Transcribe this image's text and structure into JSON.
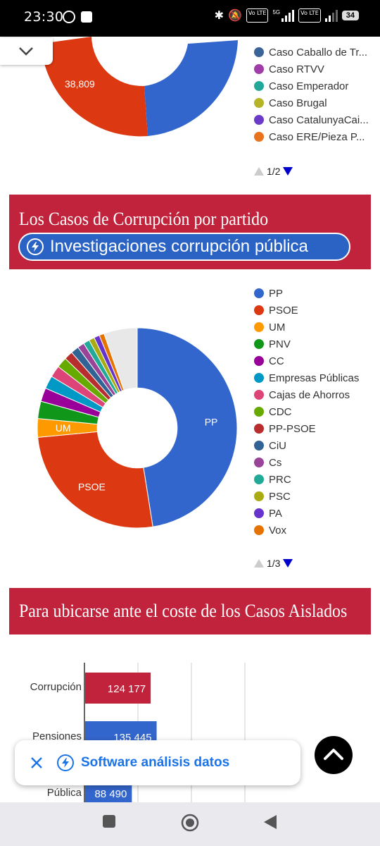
{
  "status_bar": {
    "time": "23:30",
    "network_5g": "5G",
    "volte_1": "Vo LTE",
    "volte_2": "Vo LTE",
    "battery": "34"
  },
  "section1": {
    "donut_label": "38,809",
    "legend": [
      {
        "label": "Caso Caballo de Tr...",
        "color": "#3a6398"
      },
      {
        "label": "Caso RTVV",
        "color": "#a03ca8"
      },
      {
        "label": "Caso Emperador",
        "color": "#22a89a"
      },
      {
        "label": "Caso Brugal",
        "color": "#b5b326"
      },
      {
        "label": "Caso CatalunyaCai...",
        "color": "#6b3bc7"
      },
      {
        "label": "Caso ERE/Pieza P...",
        "color": "#e8731c"
      }
    ],
    "pager": "1/2"
  },
  "section2": {
    "title": "Los Casos de Corrupción por partido",
    "pill_label": "Investigaciones corrupción pública",
    "pager": "1/3",
    "legend": [
      {
        "label": "PP",
        "color": "#3366cc"
      },
      {
        "label": "PSOE",
        "color": "#dc3912"
      },
      {
        "label": "UM",
        "color": "#ff9900"
      },
      {
        "label": "PNV",
        "color": "#109618"
      },
      {
        "label": "CC",
        "color": "#990099"
      },
      {
        "label": "Empresas Públicas",
        "color": "#0099c6"
      },
      {
        "label": "Cajas de Ahorros",
        "color": "#dd4477"
      },
      {
        "label": "CDC",
        "color": "#66aa00"
      },
      {
        "label": "PP-PSOE",
        "color": "#b82e2e"
      },
      {
        "label": "CiU",
        "color": "#316395"
      },
      {
        "label": "Cs",
        "color": "#994499"
      },
      {
        "label": "PRC",
        "color": "#22aa99"
      },
      {
        "label": "PSC",
        "color": "#aaaa11"
      },
      {
        "label": "PA",
        "color": "#6633cc"
      },
      {
        "label": "Vox",
        "color": "#e67300"
      }
    ],
    "chart_data": {
      "type": "pie",
      "title": "",
      "donut_hole": 0.4,
      "slices": [
        {
          "label": "PP",
          "value": 47.5,
          "color": "#3366cc"
        },
        {
          "label": "PSOE",
          "value": 26,
          "color": "#dc3912"
        },
        {
          "label": "UM",
          "value": 3,
          "color": "#ff9900"
        },
        {
          "label": "PNV",
          "value": 2.8,
          "color": "#109618"
        },
        {
          "label": "CC",
          "value": 2.2,
          "color": "#990099"
        },
        {
          "label": "Empresas Públicas",
          "value": 2.1,
          "color": "#0099c6"
        },
        {
          "label": "Cajas de Ahorros",
          "value": 1.9,
          "color": "#dd4477"
        },
        {
          "label": "CDC",
          "value": 1.7,
          "color": "#66aa00"
        },
        {
          "label": "PP-PSOE",
          "value": 1.4,
          "color": "#b82e2e"
        },
        {
          "label": "CiU",
          "value": 1.3,
          "color": "#316395"
        },
        {
          "label": "Cs",
          "value": 1.1,
          "color": "#994499"
        },
        {
          "label": "PRC",
          "value": 1.0,
          "color": "#22aa99"
        },
        {
          "label": "PSC",
          "value": 0.9,
          "color": "#aaaa11"
        },
        {
          "label": "PA",
          "value": 0.9,
          "color": "#6633cc"
        },
        {
          "label": "Vox",
          "value": 0.8,
          "color": "#e67300"
        },
        {
          "label": "others",
          "value": 5.4,
          "color": "#e8e8e8"
        }
      ],
      "visible_slice_labels": [
        "PP",
        "PSOE",
        "UM"
      ]
    }
  },
  "section3": {
    "title": "Para ubicarse ante el coste de los Casos Aislados",
    "chart_data": {
      "type": "bar",
      "orientation": "horizontal",
      "categories": [
        "Corrupción",
        "Pensiones",
        "Pública",
        "Pública"
      ],
      "values": [
        124177,
        135445,
        88490,
        null
      ],
      "value_labels": [
        "124 177",
        "135 445",
        "88 490",
        ""
      ],
      "colors": [
        "#c0233b",
        "#3366cc",
        "#3366cc",
        "#3366cc"
      ],
      "xlim": [
        0,
        400000
      ]
    }
  },
  "snackbar": {
    "text": "Software análisis datos"
  }
}
